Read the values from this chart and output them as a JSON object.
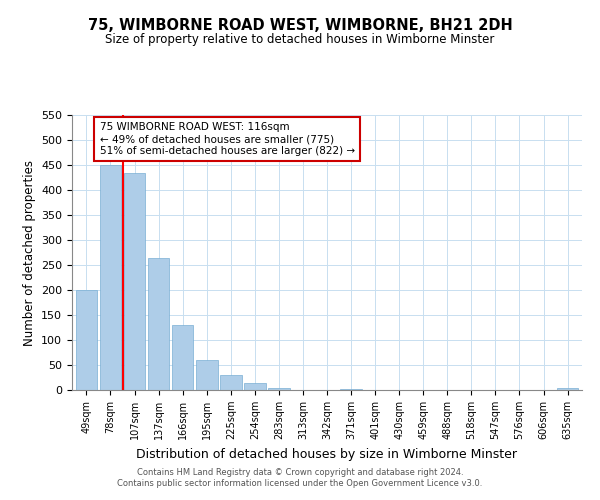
{
  "title": "75, WIMBORNE ROAD WEST, WIMBORNE, BH21 2DH",
  "subtitle": "Size of property relative to detached houses in Wimborne Minster",
  "xlabel": "Distribution of detached houses by size in Wimborne Minster",
  "ylabel": "Number of detached properties",
  "bar_labels": [
    "49sqm",
    "78sqm",
    "107sqm",
    "137sqm",
    "166sqm",
    "195sqm",
    "225sqm",
    "254sqm",
    "283sqm",
    "313sqm",
    "342sqm",
    "371sqm",
    "401sqm",
    "430sqm",
    "459sqm",
    "488sqm",
    "518sqm",
    "547sqm",
    "576sqm",
    "606sqm",
    "635sqm"
  ],
  "bar_heights": [
    200,
    450,
    435,
    265,
    130,
    60,
    30,
    15,
    5,
    0,
    0,
    3,
    0,
    0,
    0,
    0,
    0,
    0,
    0,
    0,
    5
  ],
  "bar_color": "#aecde8",
  "bar_edge_color": "#7aafd4",
  "property_line_x": 1.5,
  "annotation_title": "75 WIMBORNE ROAD WEST: 116sqm",
  "annotation_line1": "← 49% of detached houses are smaller (775)",
  "annotation_line2": "51% of semi-detached houses are larger (822) →",
  "ylim": [
    0,
    550
  ],
  "yticks": [
    0,
    50,
    100,
    150,
    200,
    250,
    300,
    350,
    400,
    450,
    500,
    550
  ],
  "footer1": "Contains HM Land Registry data © Crown copyright and database right 2024.",
  "footer2": "Contains public sector information licensed under the Open Government Licence v3.0."
}
